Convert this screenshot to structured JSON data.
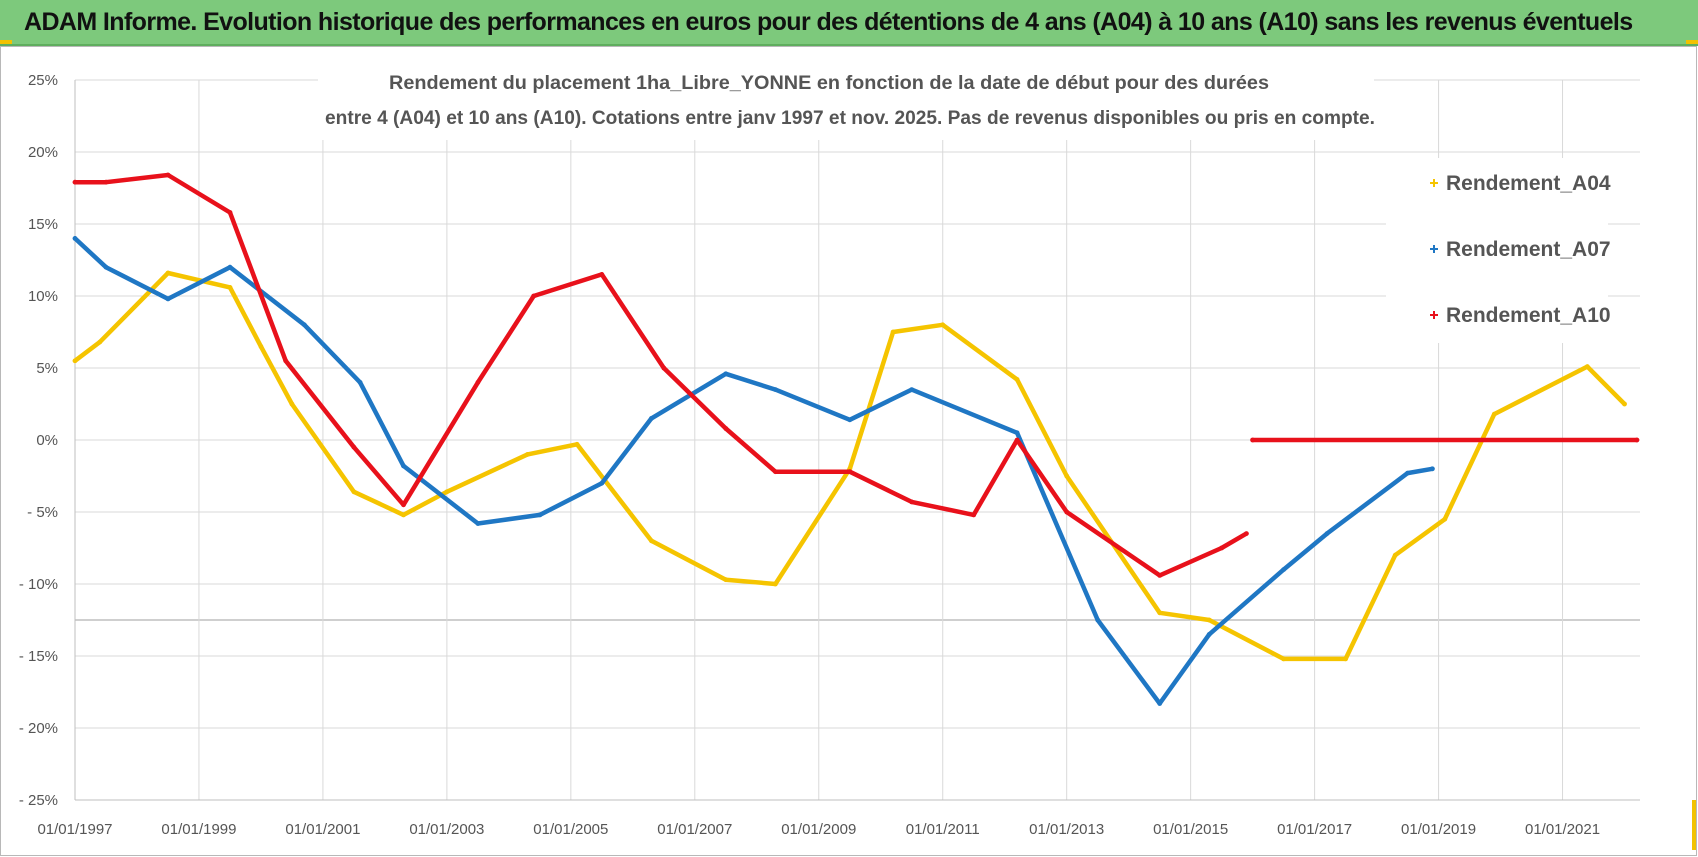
{
  "banner": {
    "text": "ADAM Informe. Evolution historique des performances en euros pour des détentions de 4 ans (A04) à 10 ans (A10) sans les revenus éventuels",
    "background": "#7dc97c"
  },
  "chart_data": {
    "type": "line",
    "title_lines": [
      "Rendement du placement 1ha_Libre_YONNE en fonction de la date de début pour des durées",
      "entre 4 (A04) et 10 ans (A10).  Cotations entre janv 1997 et nov. 2025. Pas de revenus disponibles ou pris en compte."
    ],
    "x_range": [
      1997.0,
      2022.25
    ],
    "y_range": [
      -25,
      25
    ],
    "y_ticks": [
      25,
      20,
      15,
      10,
      5,
      0,
      -5,
      -10,
      -15,
      -20,
      -25
    ],
    "y_tick_labels": [
      "25%",
      "20%",
      "15%",
      "10%",
      "5%",
      "0%",
      "- 5%",
      "- 10%",
      "- 15%",
      "- 20%",
      "- 25%"
    ],
    "x_ticks": [
      1997,
      1999,
      2001,
      2003,
      2005,
      2007,
      2009,
      2011,
      2013,
      2015,
      2017,
      2019,
      2021
    ],
    "x_tick_labels": [
      "01/01/1997",
      "01/01/1999",
      "01/01/2001",
      "01/01/2003",
      "01/01/2005",
      "01/01/2007",
      "01/01/2009",
      "01/01/2011",
      "01/01/2013",
      "01/01/2015",
      "01/01/2017",
      "01/01/2019",
      "01/01/2021"
    ],
    "extra_hline": -12.5,
    "legend_position": "top-right",
    "series": [
      {
        "name": "Rendement_A04",
        "color": "#f5c400",
        "points": [
          [
            1997.0,
            5.5
          ],
          [
            1997.4,
            6.8
          ],
          [
            1998.5,
            11.6
          ],
          [
            1999.5,
            10.6
          ],
          [
            2000.0,
            6.5
          ],
          [
            2000.5,
            2.5
          ],
          [
            2001.5,
            -3.6
          ],
          [
            2002.3,
            -5.2
          ],
          [
            2003.0,
            -3.6
          ],
          [
            2004.3,
            -1.0
          ],
          [
            2005.1,
            -0.3
          ],
          [
            2006.3,
            -7.0
          ],
          [
            2007.5,
            -9.7
          ],
          [
            2008.3,
            -10.0
          ],
          [
            2009.5,
            -2.0
          ],
          [
            2010.2,
            7.5
          ],
          [
            2011.0,
            8.0
          ],
          [
            2012.2,
            4.2
          ],
          [
            2013.0,
            -2.5
          ],
          [
            2014.5,
            -12.0
          ],
          [
            2015.3,
            -12.5
          ],
          [
            2016.5,
            -15.2
          ],
          [
            2017.5,
            -15.2
          ],
          [
            2018.3,
            -8.0
          ],
          [
            2019.1,
            -5.5
          ],
          [
            2019.9,
            1.8
          ],
          [
            2021.4,
            5.1
          ],
          [
            2022.0,
            2.5
          ]
        ]
      },
      {
        "name": "Rendement_A07",
        "color": "#1f77c4",
        "points": [
          [
            1997.0,
            14.0
          ],
          [
            1997.5,
            12.0
          ],
          [
            1998.5,
            9.8
          ],
          [
            1999.5,
            12.0
          ],
          [
            2000.7,
            8.0
          ],
          [
            2001.6,
            4.0
          ],
          [
            2002.3,
            -1.8
          ],
          [
            2003.5,
            -5.8
          ],
          [
            2004.5,
            -5.2
          ],
          [
            2005.5,
            -3.0
          ],
          [
            2006.3,
            1.5
          ],
          [
            2007.5,
            4.6
          ],
          [
            2008.3,
            3.5
          ],
          [
            2009.5,
            1.4
          ],
          [
            2010.5,
            3.5
          ],
          [
            2012.2,
            0.5
          ],
          [
            2013.5,
            -12.5
          ],
          [
            2014.5,
            -18.3
          ],
          [
            2015.3,
            -13.5
          ],
          [
            2016.5,
            -9.0
          ],
          [
            2017.2,
            -6.5
          ],
          [
            2018.5,
            -2.3
          ],
          [
            2018.9,
            -2.0
          ]
        ]
      },
      {
        "name": "Rendement_A10",
        "color": "#e8111b",
        "points": [
          [
            1997.0,
            17.9
          ],
          [
            1997.5,
            17.9
          ],
          [
            1998.5,
            18.4
          ],
          [
            1999.5,
            15.8
          ],
          [
            2000.4,
            5.5
          ],
          [
            2001.5,
            -0.5
          ],
          [
            2002.3,
            -4.5
          ],
          [
            2003.5,
            4.0
          ],
          [
            2004.4,
            10.0
          ],
          [
            2005.5,
            11.5
          ],
          [
            2006.5,
            5.0
          ],
          [
            2007.5,
            0.8
          ],
          [
            2008.3,
            -2.2
          ],
          [
            2009.5,
            -2.2
          ],
          [
            2010.5,
            -4.3
          ],
          [
            2011.5,
            -5.2
          ],
          [
            2012.2,
            0.0
          ],
          [
            2013.0,
            -5.0
          ],
          [
            2014.5,
            -9.4
          ],
          [
            2015.5,
            -7.5
          ],
          [
            2015.9,
            -6.5
          ]
        ]
      },
      {
        "name": "Rendement_A10",
        "color": "#e8111b",
        "legend": false,
        "points": [
          [
            2016.0,
            0.0
          ],
          [
            2022.2,
            0.0
          ]
        ]
      }
    ]
  }
}
